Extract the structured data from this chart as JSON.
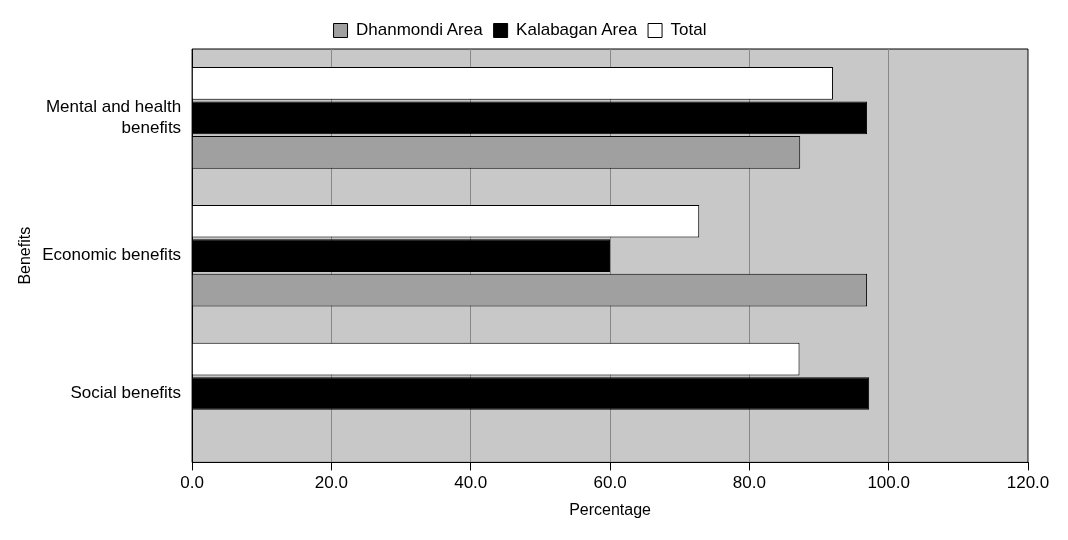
{
  "chart_data": {
    "type": "bar",
    "orientation": "horizontal",
    "categories": [
      "Mental and health benefits",
      "Economic benefits",
      "Social benefits"
    ],
    "xlabel": "Percentage",
    "ylabel": "Benefits",
    "series": [
      {
        "name": "Dhanmondi Area",
        "color": "#a0a0a0",
        "values": [
          87.3,
          96.9,
          null
        ]
      },
      {
        "name": "Kalabagan Area",
        "color": "#000000",
        "values": [
          96.9,
          60.0,
          97.2
        ]
      },
      {
        "name": "Total",
        "color": "#ffffff",
        "values": [
          92.0,
          72.8,
          87.2
        ]
      }
    ],
    "xlim": [
      0,
      120
    ],
    "xticks": [
      {
        "value": 0,
        "label": "0.0"
      },
      {
        "value": 20,
        "label": "20.0"
      },
      {
        "value": 40,
        "label": "40.0"
      },
      {
        "value": 60,
        "label": "60.0"
      },
      {
        "value": 80,
        "label": "80.0"
      },
      {
        "value": 100,
        "label": "100.0"
      },
      {
        "value": 120,
        "label": "120.0"
      }
    ],
    "grid": "x",
    "legend": "top"
  }
}
